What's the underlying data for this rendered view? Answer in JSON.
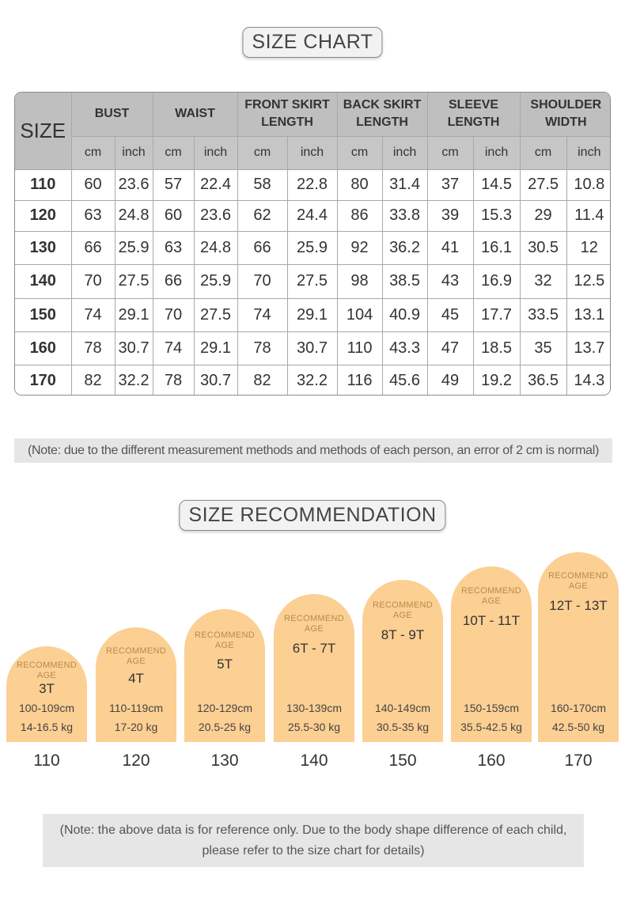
{
  "size_chart": {
    "title": "SIZE CHART",
    "size_header": "SIZE",
    "groups": [
      "BUST",
      "WAIST",
      "FRONT SKIRT LENGTH",
      "BACK SKIRT LENGTH",
      "SLEEVE LENGTH",
      "SHOULDER WIDTH"
    ],
    "group_lines": [
      [
        "BUST"
      ],
      [
        "WAIST"
      ],
      [
        "FRONT SKIRT",
        "LENGTH"
      ],
      [
        "BACK SKIRT",
        "LENGTH"
      ],
      [
        "SLEEVE",
        "LENGTH"
      ],
      [
        "SHOULDER",
        "WIDTH"
      ]
    ],
    "units": [
      "cm",
      "inch"
    ],
    "rows": [
      {
        "size": "110",
        "values": [
          "60",
          "23.6",
          "57",
          "22.4",
          "58",
          "22.8",
          "80",
          "31.4",
          "37",
          "14.5",
          "27.5",
          "10.8"
        ]
      },
      {
        "size": "120",
        "values": [
          "63",
          "24.8",
          "60",
          "23.6",
          "62",
          "24.4",
          "86",
          "33.8",
          "39",
          "15.3",
          "29",
          "11.4"
        ]
      },
      {
        "size": "130",
        "values": [
          "66",
          "25.9",
          "63",
          "24.8",
          "66",
          "25.9",
          "92",
          "36.2",
          "41",
          "16.1",
          "30.5",
          "12"
        ]
      },
      {
        "size": "140",
        "values": [
          "70",
          "27.5",
          "66",
          "25.9",
          "70",
          "27.5",
          "98",
          "38.5",
          "43",
          "16.9",
          "32",
          "12.5"
        ]
      },
      {
        "size": "150",
        "values": [
          "74",
          "29.1",
          "70",
          "27.5",
          "74",
          "29.1",
          "104",
          "40.9",
          "45",
          "17.7",
          "33.5",
          "13.1"
        ]
      },
      {
        "size": "160",
        "values": [
          "78",
          "30.7",
          "74",
          "29.1",
          "78",
          "30.7",
          "110",
          "43.3",
          "47",
          "18.5",
          "35",
          "13.7"
        ]
      },
      {
        "size": "170",
        "values": [
          "82",
          "32.2",
          "78",
          "30.7",
          "82",
          "32.2",
          "116",
          "45.6",
          "49",
          "19.2",
          "36.5",
          "14.3"
        ]
      }
    ]
  },
  "note1": "(Note: due to the different measurement methods and methods of each person, an error of 2 cm is normal)",
  "recommendation": {
    "title": "SIZE RECOMMENDATION",
    "recommend_label_line1": "RECOMMEND",
    "recommend_label_line2": "AGE",
    "arch_color": "#fccf93",
    "items": [
      {
        "size": "110",
        "age": "3T",
        "height": "100-109cm",
        "weight": "14-16.5 kg"
      },
      {
        "size": "120",
        "age": "4T",
        "height": "110-119cm",
        "weight": "17-20 kg"
      },
      {
        "size": "130",
        "age": "5T",
        "height": "120-129cm",
        "weight": "20.5-25 kg"
      },
      {
        "size": "140",
        "age": "6T - 7T",
        "height": "130-139cm",
        "weight": "25.5-30 kg"
      },
      {
        "size": "150",
        "age": "8T - 9T",
        "height": "140-149cm",
        "weight": "30.5-35 kg"
      },
      {
        "size": "160",
        "age": "10T - 11T",
        "height": "150-159cm",
        "weight": "35.5-42.5 kg"
      },
      {
        "size": "170",
        "age": "12T - 13T",
        "height": "160-170cm",
        "weight": "42.5-50 kg"
      }
    ]
  },
  "note2_line1": "(Note: the above data is for reference only. Due to the body shape difference of each child,",
  "note2_line2": "please refer to the size chart for details)"
}
